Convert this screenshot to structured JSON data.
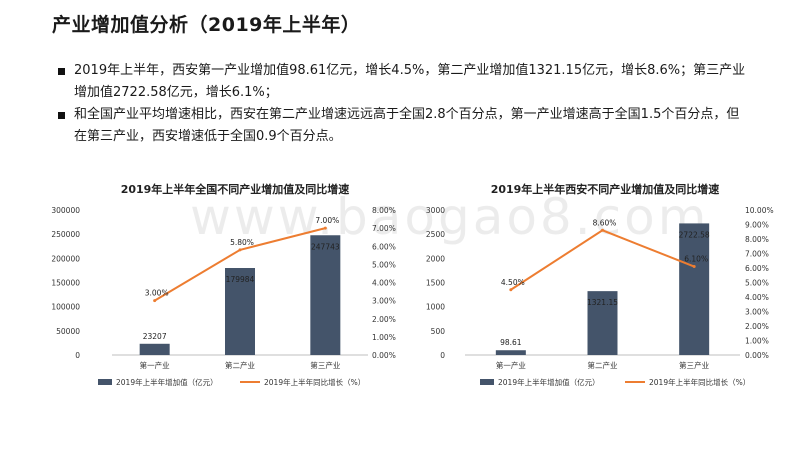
{
  "page": {
    "title": "产业增加值分析（2019年上半年）",
    "bullets": [
      "2019年上半年，西安第一产业增加值98.61亿元，增长4.5%，第二产业增加值1321.15亿元，增长8.6%；第三产业增加值2722.58亿元，增长6.1%；",
      "和全国产业平均增速相比，西安在第二产业增速远远高于全国2.8个百分点，第一产业增速高于全国1.5个百分点，但在第三产业，西安增速低于全国0.9个百分点。"
    ],
    "watermark": "www.baogao8.com"
  },
  "colors": {
    "bar": "#44546a",
    "line": "#ed7d31"
  },
  "chart_data": [
    {
      "type": "bar+line",
      "title": "2019年上半年全国不同产业增加值及同比增速",
      "categories": [
        "第一产业",
        "第二产业",
        "第三产业"
      ],
      "bar_series": {
        "name": "2019年上半年增加值（亿元）",
        "values": [
          23207,
          179984,
          247743
        ],
        "labels": [
          "23207",
          "179984",
          "247743"
        ]
      },
      "line_series": {
        "name": "2019年上半年同比增长（%）",
        "values": [
          3.0,
          5.8,
          7.0
        ],
        "labels": [
          "3.00%",
          "5.80%",
          "7.00%"
        ]
      },
      "ylim_left": [
        0,
        300000
      ],
      "yticks_left": [
        "0",
        "50000",
        "100000",
        "150000",
        "200000",
        "250000",
        "300000"
      ],
      "ylim_right": [
        0,
        8
      ],
      "yticks_right": [
        "0.00%",
        "1.00%",
        "2.00%",
        "3.00%",
        "4.00%",
        "5.00%",
        "6.00%",
        "7.00%",
        "8.00%"
      ]
    },
    {
      "type": "bar+line",
      "title": "2019年上半年西安不同产业增加值及同比增速",
      "categories": [
        "第一产业",
        "第二产业",
        "第三产业"
      ],
      "bar_series": {
        "name": "2019年上半年增加值（亿元）",
        "values": [
          98.61,
          1321.15,
          2722.58
        ],
        "labels": [
          "98.61",
          "1321.15",
          "2722.58"
        ]
      },
      "line_series": {
        "name": "2019年上半年同比增长（%）",
        "values": [
          4.5,
          8.6,
          6.1
        ],
        "labels": [
          "4.50%",
          "8.60%",
          "6.10%"
        ]
      },
      "ylim_left": [
        0,
        3000
      ],
      "yticks_left": [
        "0",
        "500",
        "1000",
        "1500",
        "2000",
        "2500",
        "3000"
      ],
      "ylim_right": [
        0,
        10
      ],
      "yticks_right": [
        "0.00%",
        "1.00%",
        "2.00%",
        "3.00%",
        "4.00%",
        "5.00%",
        "6.00%",
        "7.00%",
        "8.00%",
        "9.00%",
        "10.00%"
      ]
    }
  ]
}
